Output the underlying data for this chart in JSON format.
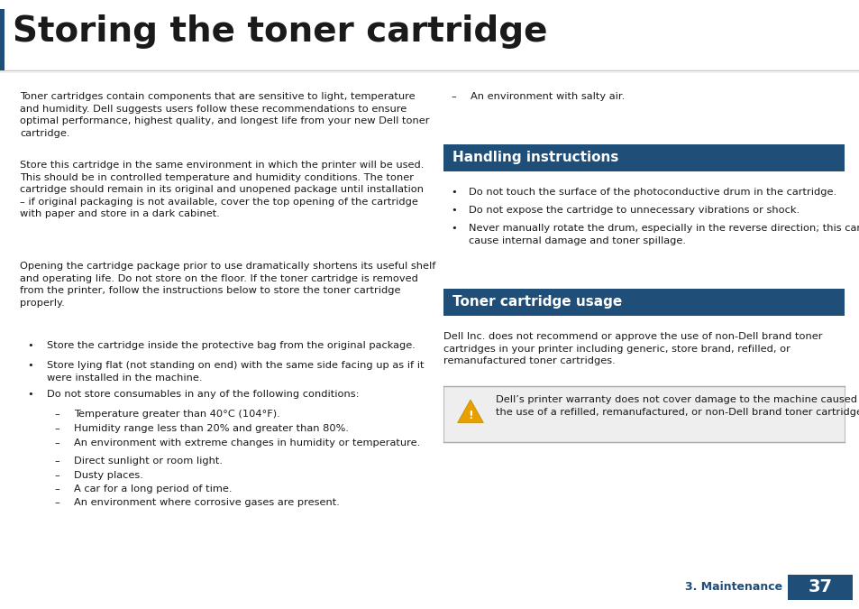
{
  "bg_color": "#ffffff",
  "title": "Storing the toner cartridge",
  "title_color": "#1a1a1a",
  "header_bg": "#1f4e79",
  "header_text_color": "#ffffff",
  "left_bar_color": "#1f4e79",
  "body_text_color": "#1a1a1a",
  "page_num_bg": "#1f4e79",
  "page_num_color": "#ffffff",
  "section_label_color": "#1f4e79",
  "para1": "Toner cartridges contain components that are sensitive to light, temperature\nand humidity. Dell suggests users follow these recommendations to ensure\noptimal performance, highest quality, and longest life from your new Dell toner\ncartridge.",
  "para2": "Store this cartridge in the same environment in which the printer will be used.\nThis should be in controlled temperature and humidity conditions. The toner\ncartridge should remain in its original and unopened package until installation\n– if original packaging is not available, cover the top opening of the cartridge\nwith paper and store in a dark cabinet.",
  "para3": "Opening the cartridge package prior to use dramatically shortens its useful shelf\nand operating life. Do not store on the floor. If the toner cartridge is removed\nfrom the printer, follow the instructions below to store the toner cartridge\nproperly.",
  "bullet1": "Store the cartridge inside the protective bag from the original package.",
  "bullet2": "Store lying flat (not standing on end) with the same side facing up as if it\nwere installed in the machine.",
  "bullet3": "Do not store consumables in any of the following conditions:",
  "dashes_left": [
    "Temperature greater than 40°C (104°F).",
    "Humidity range less than 20% and greater than 80%.",
    "An environment with extreme changes in humidity or temperature.",
    "Direct sunlight or room light.",
    "Dusty places.",
    "A car for a long period of time.",
    "An environment where corrosive gases are present."
  ],
  "dash_right": "An environment with salty air.",
  "section1_title": "Handling instructions",
  "rbullet1": "Do not touch the surface of the photoconductive drum in the cartridge.",
  "rbullet2": "Do not expose the cartridge to unnecessary vibrations or shock.",
  "rbullet3": "Never manually rotate the drum, especially in the reverse direction; this can\ncause internal damage and toner spillage.",
  "section2_title": "Toner cartridge usage",
  "usage_para": "Dell Inc. does not recommend or approve the use of non-Dell brand toner\ncartridges in your printer including generic, store brand, refilled, or\nremanufactured toner cartridges.",
  "warning_text": "Dell’s printer warranty does not cover damage to the machine caused by\nthe use of a refilled, remanufactured, or non-Dell brand toner cartridges.",
  "page_label": "3. Maintenance",
  "page_number": "37"
}
